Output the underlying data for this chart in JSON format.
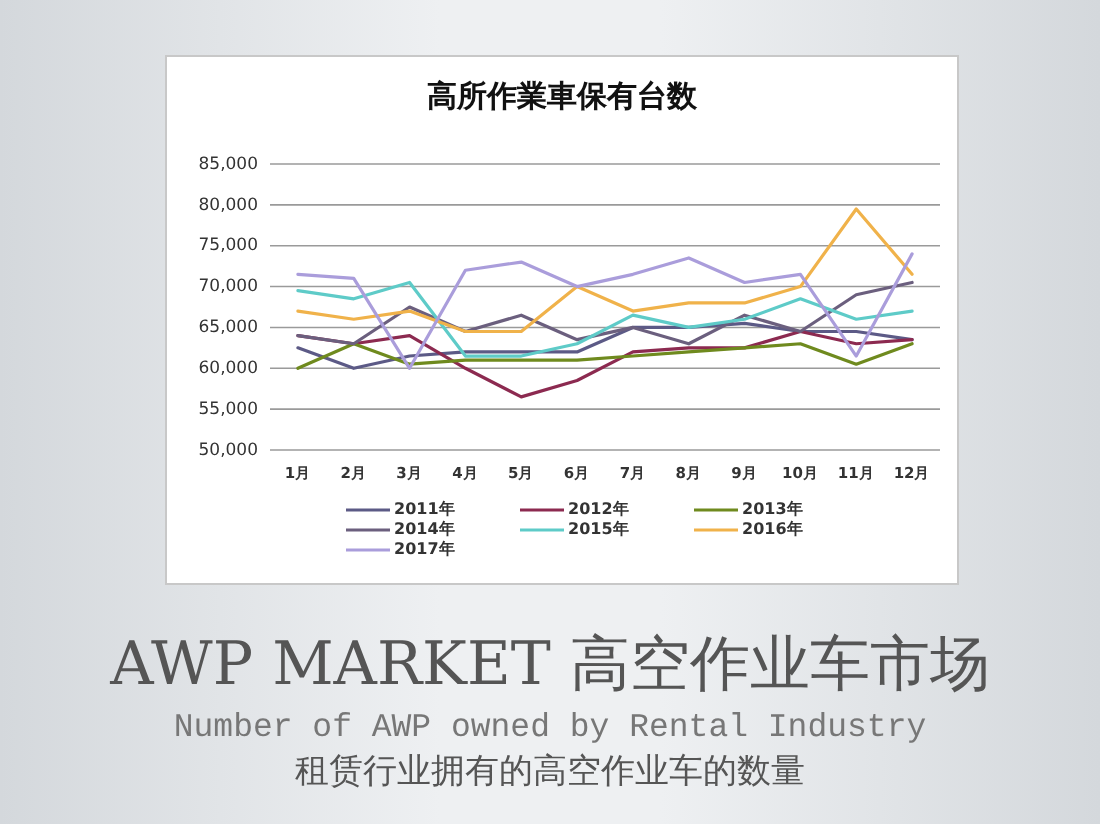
{
  "chart_data": {
    "type": "line",
    "title": "高所作業車保有台数",
    "categories": [
      "1月",
      "2月",
      "3月",
      "4月",
      "5月",
      "6月",
      "7月",
      "8月",
      "9月",
      "10月",
      "11月",
      "12月"
    ],
    "series": [
      {
        "name": "2011年",
        "color": "#5c5a86",
        "values": [
          62500,
          60000,
          61500,
          62000,
          62000,
          62000,
          65000,
          65000,
          65500,
          64500,
          64500,
          63500
        ]
      },
      {
        "name": "2012年",
        "color": "#8c2a50",
        "values": [
          64000,
          63000,
          64000,
          60000,
          56500,
          58500,
          62000,
          62500,
          62500,
          64500,
          63000,
          63500
        ]
      },
      {
        "name": "2013年",
        "color": "#6f8a1e",
        "values": [
          60000,
          63000,
          60500,
          61000,
          61000,
          61000,
          61500,
          62000,
          62500,
          63000,
          60500,
          63000
        ]
      },
      {
        "name": "2014年",
        "color": "#6b5f7e",
        "values": [
          64000,
          63000,
          67500,
          64500,
          66500,
          63500,
          65000,
          63000,
          66500,
          64500,
          69000,
          70500
        ]
      },
      {
        "name": "2015年",
        "color": "#5ecbc8",
        "values": [
          69500,
          68500,
          70500,
          61500,
          61500,
          63000,
          66500,
          65000,
          66000,
          68500,
          66000,
          67000
        ]
      },
      {
        "name": "2016年",
        "color": "#f0b24a",
        "values": [
          67000,
          66000,
          67000,
          64500,
          64500,
          70000,
          67000,
          68000,
          68000,
          70000,
          79500,
          71500
        ]
      },
      {
        "name": "2017年",
        "color": "#aa9ddb",
        "values": [
          71500,
          71000,
          60000,
          72000,
          73000,
          70000,
          71500,
          73500,
          70500,
          71500,
          61500,
          74000
        ]
      }
    ],
    "ylim": [
      50000,
      85000
    ],
    "yticks": [
      {
        "value": 50000,
        "label": "50,000"
      },
      {
        "value": 55000,
        "label": "55,000"
      },
      {
        "value": 60000,
        "label": "60,000"
      },
      {
        "value": 65000,
        "label": "65,000"
      },
      {
        "value": 70000,
        "label": "70,000"
      },
      {
        "value": 75000,
        "label": "75,000"
      },
      {
        "value": 80000,
        "label": "80,000"
      },
      {
        "value": 85000,
        "label": "85,000"
      }
    ],
    "grid": "y",
    "legend": "bottom",
    "marker": "none",
    "line_style": "solid",
    "annotations": [
      "AWP MARKET 高空作业车市场",
      "Number of AWP owned by Rental Industry",
      "租赁行业拥有的高空作业车的数量"
    ]
  }
}
